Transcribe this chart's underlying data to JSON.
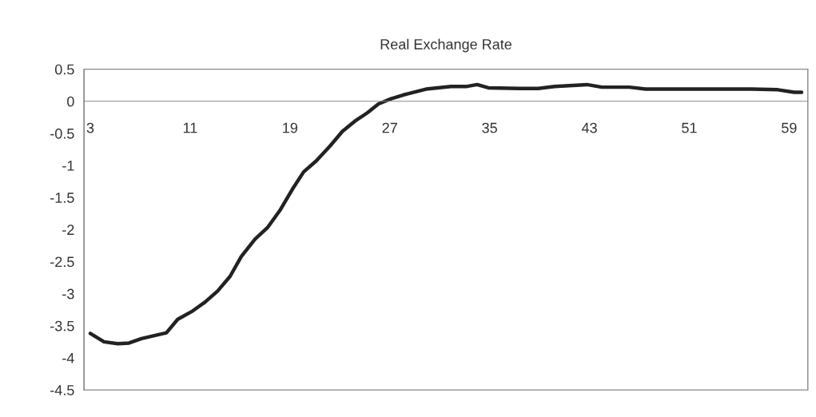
{
  "chart_data": {
    "type": "line",
    "title": "Real Exchange Rate",
    "x": [
      3.0,
      4.1,
      5.2,
      6.1,
      7.1,
      8.2,
      9.1,
      10.0,
      11.2,
      12.2,
      13.2,
      14.2,
      15.1,
      16.2,
      17.2,
      18.2,
      19.2,
      20.1,
      21.1,
      22.2,
      23.2,
      24.2,
      25.2,
      26.1,
      27.1,
      28.1,
      28.7,
      29.9,
      31.9,
      33.1,
      34.0,
      34.9,
      37.4,
      38.9,
      40.2,
      42.8,
      44.0,
      46.2,
      47.5,
      51.3,
      56.0,
      58.1,
      59.4,
      60.0
    ],
    "series": [
      {
        "color": "#222222",
        "values": [
          -3.62,
          -3.75,
          -3.78,
          -3.77,
          -3.7,
          -3.65,
          -3.61,
          -3.4,
          -3.27,
          -3.13,
          -2.96,
          -2.73,
          -2.42,
          -2.15,
          -1.97,
          -1.7,
          -1.37,
          -1.1,
          -0.93,
          -0.7,
          -0.47,
          -0.31,
          -0.18,
          -0.04,
          0.04,
          0.1,
          0.13,
          0.19,
          0.23,
          0.23,
          0.26,
          0.21,
          0.2,
          0.2,
          0.23,
          0.26,
          0.22,
          0.22,
          0.19,
          0.19,
          0.19,
          0.18,
          0.14,
          0.14
        ]
      }
    ],
    "xlim": [
      2.5,
      60.5
    ],
    "xticks": [
      3,
      11,
      19,
      27,
      35,
      43,
      51,
      59
    ],
    "ylim": [
      -4.5,
      0.5
    ],
    "yticks": [
      0.5,
      0,
      -0.5,
      -1,
      -1.5,
      -2,
      -2.5,
      -3,
      -3.5,
      -4,
      -4.5
    ],
    "grid": false,
    "marker": "none",
    "line_style": "solid"
  }
}
